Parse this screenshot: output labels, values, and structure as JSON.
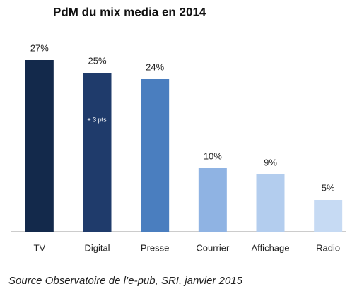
{
  "chart_data": {
    "type": "bar",
    "title": "PdM du mix media en 2014",
    "categories": [
      "TV",
      "Digital",
      "Presse",
      "Courrier",
      "Affichage",
      "Radio"
    ],
    "values": [
      27,
      25,
      24,
      10,
      9,
      5
    ],
    "value_labels": [
      "27%",
      "25%",
      "24%",
      "10%",
      "9%",
      "5%"
    ],
    "colors": [
      "#13294b",
      "#1f3b6b",
      "#4a7ebf",
      "#8fb3e3",
      "#b3cdee",
      "#c6daf3"
    ],
    "ylim": [
      0,
      30
    ],
    "annotation": "+ 3 pts",
    "source": "Source Observatoire de l’e-pub, SRI, janvier 2015"
  }
}
